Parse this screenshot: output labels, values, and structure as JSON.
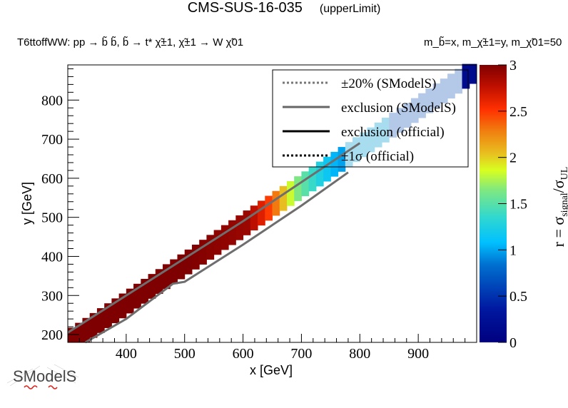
{
  "header": {
    "title": "CMS-SUS-16-035",
    "title_suffix": "(upperLimit)",
    "process": "T6ttoffWW: pp → b̃ b̃, b̃ → t* χ̃±1, χ̃±1 → W χ̃01",
    "masses": "m_b̃=x, m_χ̃±1=y, m_χ̃01=50"
  },
  "logo": {
    "text": "SModelS"
  },
  "chart_data": {
    "type": "heatmap",
    "title": "CMS-SUS-16-035 (upperLimit)",
    "xlabel": "x [GeV]",
    "ylabel": "y [GeV]",
    "zlabel": "r = σ_signal/σ_UL",
    "xlim": [
      300,
      1000
    ],
    "ylim": [
      180,
      890
    ],
    "zlim": [
      0,
      3
    ],
    "xticks": [
      400,
      500,
      600,
      700,
      800,
      900
    ],
    "yticks": [
      200,
      300,
      400,
      500,
      600,
      700,
      800
    ],
    "zticks": [
      "0",
      "0.5",
      "1",
      "1.5",
      "2",
      "2.5",
      "3"
    ],
    "colormap": [
      "#00007f",
      "#0040c0",
      "#00c0ff",
      "#60e0a0",
      "#d8ff20",
      "#ffa000",
      "#ff3000",
      "#7f0000"
    ],
    "legend": {
      "position": "top-right",
      "entries": [
        {
          "label": "±20% (SModelS)",
          "style": "dotted",
          "color": "#777777"
        },
        {
          "label": "exclusion (SModelS)",
          "style": "solid",
          "color": "#666666"
        },
        {
          "label": "exclusion (official)",
          "style": "solid",
          "color": "#000000"
        },
        {
          "label": "±1σ (official)",
          "style": "dotted",
          "color": "#000000"
        }
      ]
    },
    "band": {
      "description": "diagonal strip of grid points with y ≈ x - 100 .. x - 150",
      "x_start": 300,
      "x_end": 1000,
      "r_profile": [
        {
          "x": 320,
          "r": 3.0
        },
        {
          "x": 400,
          "r": 3.0
        },
        {
          "x": 500,
          "r": 3.0
        },
        {
          "x": 600,
          "r": 2.9
        },
        {
          "x": 630,
          "r": 2.6
        },
        {
          "x": 650,
          "r": 2.3
        },
        {
          "x": 670,
          "r": 1.9
        },
        {
          "x": 690,
          "r": 1.6
        },
        {
          "x": 720,
          "r": 1.3
        },
        {
          "x": 750,
          "r": 1.05
        },
        {
          "x": 780,
          "r": 0.9
        },
        {
          "x": 850,
          "r": 0.8
        },
        {
          "x": 950,
          "r": 0.75
        },
        {
          "x": 980,
          "r": 0.1
        }
      ]
    },
    "exclusion_smodels_upper": [
      [
        300,
        205
      ],
      [
        400,
        300
      ],
      [
        500,
        395
      ],
      [
        600,
        490
      ],
      [
        700,
        590
      ],
      [
        800,
        690
      ]
    ],
    "exclusion_smodels_lower": [
      [
        330,
        180
      ],
      [
        400,
        240
      ],
      [
        480,
        330
      ],
      [
        500,
        335
      ],
      [
        600,
        430
      ],
      [
        700,
        530
      ],
      [
        780,
        615
      ]
    ]
  }
}
